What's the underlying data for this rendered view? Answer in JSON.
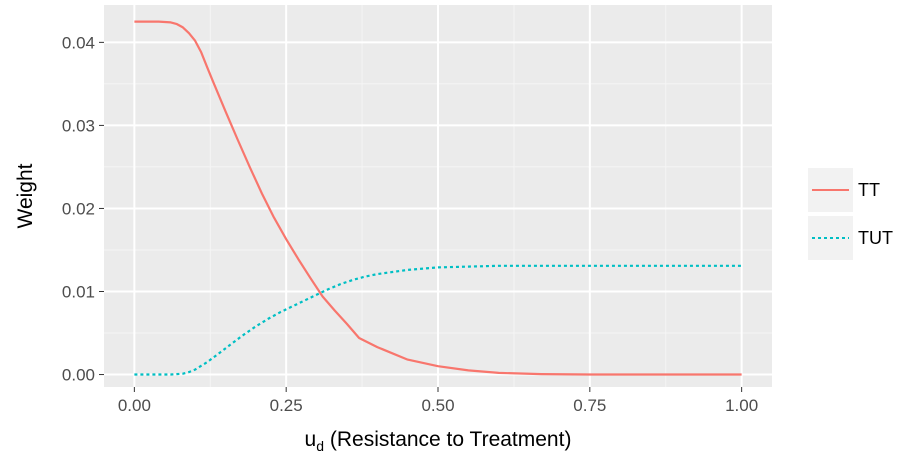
{
  "chart_data": {
    "type": "line",
    "title": "",
    "xlabel": {
      "base": "u",
      "subscript": "d",
      "rest": " (Resistance to Treatment)"
    },
    "ylabel": "Weight",
    "xlim": [
      -0.05,
      1.05
    ],
    "ylim": [
      -0.0015,
      0.0445
    ],
    "x_ticks": [
      0.0,
      0.25,
      0.5,
      0.75,
      1.0
    ],
    "x_tick_labels": [
      "0.00",
      "0.25",
      "0.50",
      "0.75",
      "1.00"
    ],
    "y_ticks": [
      0.0,
      0.01,
      0.02,
      0.03,
      0.04
    ],
    "y_tick_labels": [
      "0.00",
      "0.01",
      "0.02",
      "0.03",
      "0.04"
    ],
    "grid": true,
    "legend_position": "right",
    "series": [
      {
        "name": "TT",
        "color": "#F8766D",
        "dash": "solid",
        "x": [
          0.0,
          0.02,
          0.04,
          0.06,
          0.07,
          0.08,
          0.09,
          0.1,
          0.11,
          0.12,
          0.13,
          0.15,
          0.17,
          0.19,
          0.21,
          0.23,
          0.25,
          0.27,
          0.29,
          0.31,
          0.33,
          0.35,
          0.37,
          0.4,
          0.45,
          0.5,
          0.55,
          0.6,
          0.67,
          0.75,
          0.85,
          1.0
        ],
        "y": [
          0.0425,
          0.0425,
          0.0425,
          0.0424,
          0.0422,
          0.0418,
          0.0411,
          0.0402,
          0.0388,
          0.037,
          0.0352,
          0.0317,
          0.0283,
          0.025,
          0.0218,
          0.0189,
          0.0163,
          0.0139,
          0.0116,
          0.0094,
          0.0077,
          0.0061,
          0.0044,
          0.0033,
          0.0018,
          0.001,
          0.0005,
          0.0002,
          5e-05,
          0.0,
          0.0,
          0.0
        ]
      },
      {
        "name": "TUT",
        "color": "#00BFC4",
        "dash": "dotted",
        "x": [
          0.0,
          0.02,
          0.04,
          0.06,
          0.08,
          0.09,
          0.1,
          0.12,
          0.14,
          0.16,
          0.18,
          0.2,
          0.22,
          0.24,
          0.26,
          0.28,
          0.3,
          0.32,
          0.34,
          0.36,
          0.38,
          0.4,
          0.45,
          0.5,
          0.55,
          0.6,
          0.7,
          0.8,
          0.9,
          1.0
        ],
        "y": [
          0.0,
          0.0,
          0.0,
          0.0,
          0.0001,
          0.0003,
          0.0006,
          0.0015,
          0.0026,
          0.0037,
          0.0048,
          0.0058,
          0.0067,
          0.0075,
          0.0082,
          0.0089,
          0.0096,
          0.0103,
          0.0109,
          0.0114,
          0.0118,
          0.0121,
          0.0126,
          0.0129,
          0.013,
          0.0131,
          0.0131,
          0.0131,
          0.0131,
          0.0131
        ]
      }
    ]
  }
}
